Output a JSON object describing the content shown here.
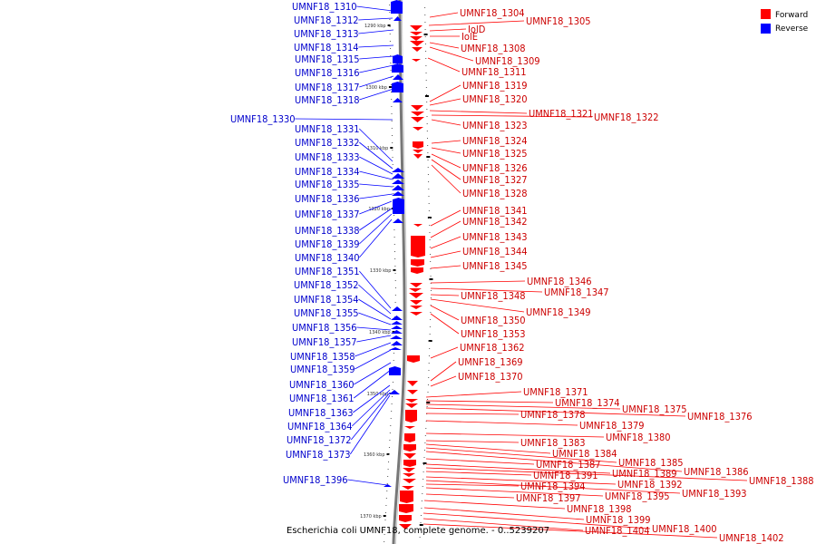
{
  "caption": "Escherichia coli UMNF18, complete genome. - 0..5239207",
  "colors": {
    "forward": "#ff0000",
    "reverse": "#0000ff",
    "forward_text": "#cc0000",
    "reverse_text": "#0000cc"
  },
  "legend": [
    {
      "label": "Forward",
      "color": "#ff0000"
    },
    {
      "label": "Reverse",
      "color": "#0000ff"
    }
  ],
  "ticks": [
    "1290 kbp",
    "1300 kbp",
    "1310 kbp",
    "1320 kbp",
    "1330 kbp",
    "1340 kbp",
    "1350 kbp",
    "1360 kbp",
    "1370 kbp"
  ],
  "reverse_labels": [
    "UMNF18_1310",
    "UMNF18_1312",
    "UMNF18_1313",
    "UMNF18_1314",
    "UMNF18_1315",
    "UMNF18_1316",
    "UMNF18_1317",
    "UMNF18_1318",
    "UMNF18_1330",
    "UMNF18_1331",
    "UMNF18_1332",
    "UMNF18_1333",
    "UMNF18_1334",
    "UMNF18_1335",
    "UMNF18_1336",
    "UMNF18_1337",
    "UMNF18_1338",
    "UMNF18_1339",
    "UMNF18_1340",
    "UMNF18_1351",
    "UMNF18_1352",
    "UMNF18_1354",
    "UMNF18_1355",
    "UMNF18_1356",
    "UMNF18_1357",
    "UMNF18_1358",
    "UMNF18_1359",
    "UMNF18_1360",
    "UMNF18_1361",
    "UMNF18_1363",
    "UMNF18_1364",
    "UMNF18_1372",
    "UMNF18_1373",
    "UMNF18_1396"
  ],
  "forward_labels": [
    "UMNF18_1304",
    "UMNF18_1305",
    "IolD",
    "IolE",
    "UMNF18_1308",
    "UMNF18_1309",
    "UMNF18_1311",
    "UMNF18_1319",
    "UMNF18_1320",
    "UMNF18_1321",
    "UMNF18_1322",
    "UMNF18_1323",
    "UMNF18_1324",
    "UMNF18_1325",
    "UMNF18_1326",
    "UMNF18_1327",
    "UMNF18_1328",
    "UMNF18_1341",
    "UMNF18_1342",
    "UMNF18_1343",
    "UMNF18_1344",
    "UMNF18_1345",
    "UMNF18_1346",
    "UMNF18_1347",
    "UMNF18_1348",
    "UMNF18_1349",
    "UMNF18_1350",
    "UMNF18_1353",
    "UMNF18_1362",
    "UMNF18_1369",
    "UMNF18_1370",
    "UMNF18_1371",
    "UMNF18_1374",
    "UMNF18_1375",
    "UMNF18_1376",
    "UMNF18_1378",
    "UMNF18_1379",
    "UMNF18_1380",
    "UMNF18_1383",
    "UMNF18_1384",
    "UMNF18_1385",
    "UMNF18_1386",
    "UMNF18_1387",
    "UMNF18_1389",
    "UMNF18_1388",
    "UMNF18_1391",
    "UMNF18_1392",
    "UMNF18_1393",
    "UMNF18_1394",
    "UMNF18_1395",
    "UMNF18_1397",
    "UMNF18_1398",
    "UMNF18_1399",
    "UMNF18_1400",
    "UMNF18_1404",
    "UMNF18_1402"
  ]
}
